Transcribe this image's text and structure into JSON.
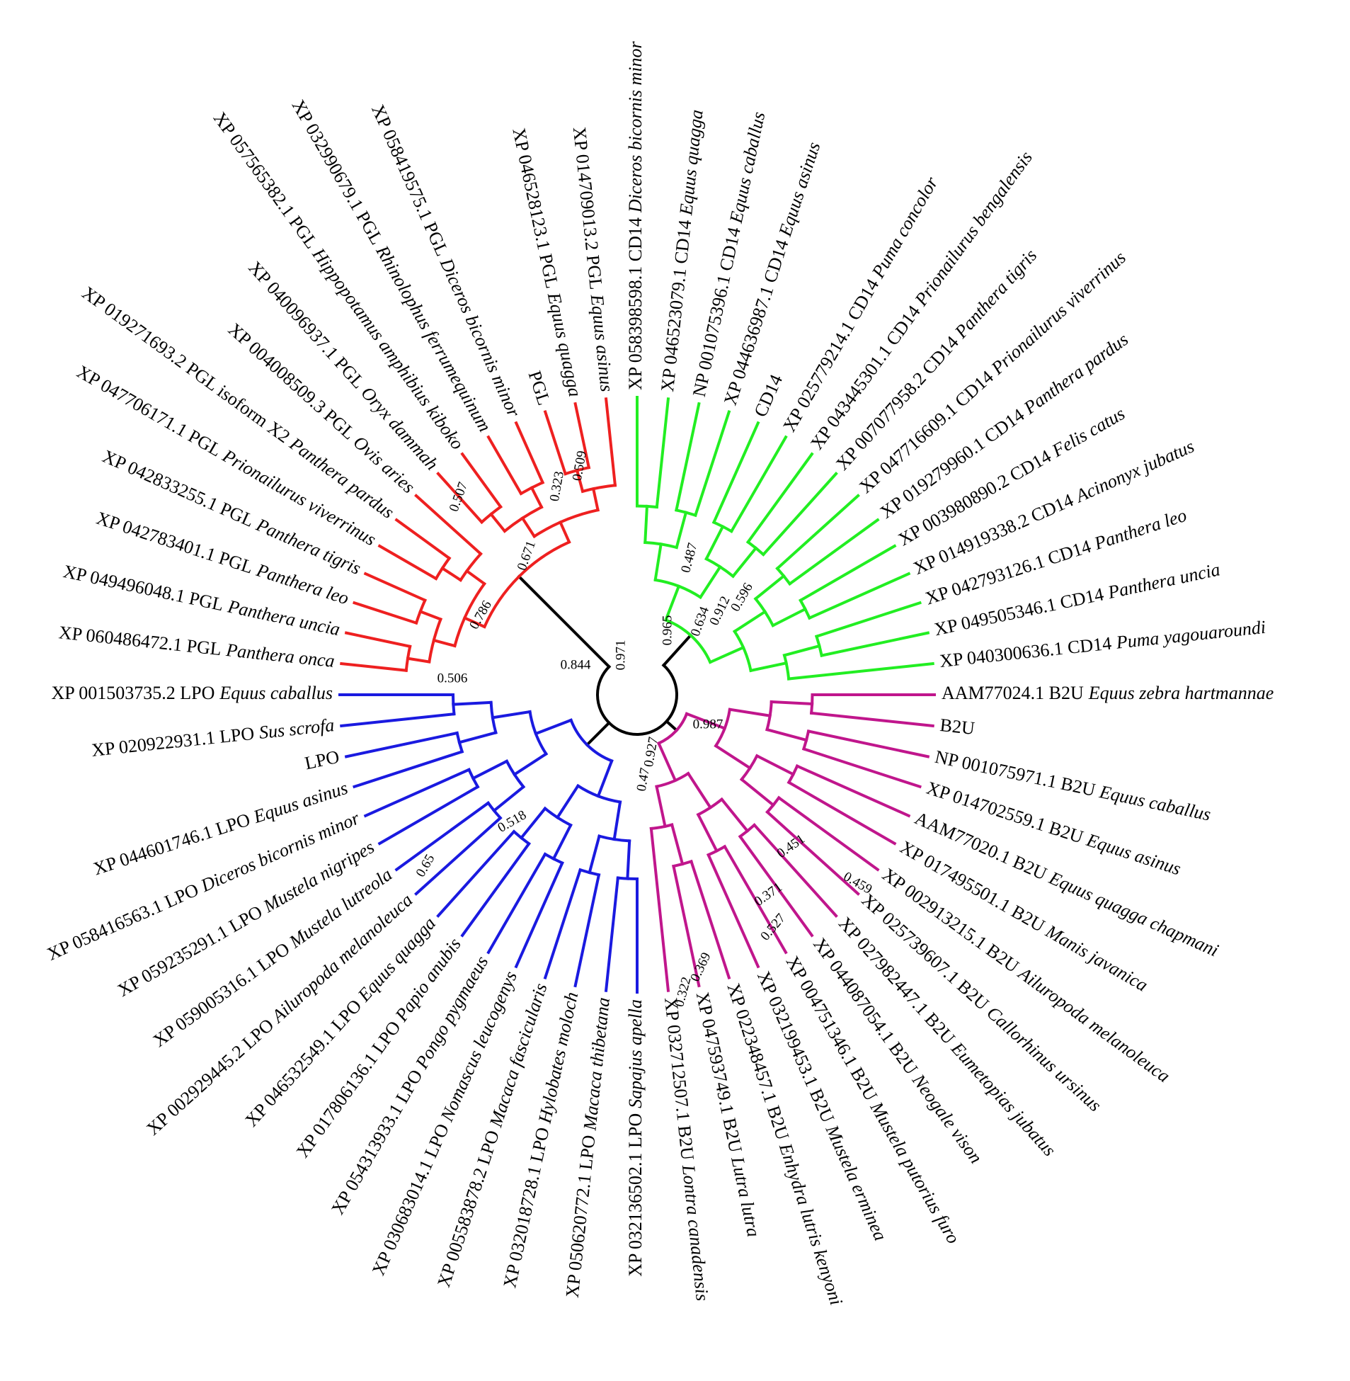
{
  "clades": [
    {
      "color": "#22ee22",
      "leaves": [
        {
          "id": "XP 058398598.1 CD14",
          "species": "Diceros bicornis minor"
        },
        {
          "id": "XP 046523079.1 CD14",
          "species": "Equus quagga"
        },
        {
          "id": "NP 001075396.1 CD14",
          "species": "Equus caballus"
        },
        {
          "id": "XP 044636987.1 CD14",
          "species": "Equus asinus"
        },
        {
          "id": "CD14"
        },
        {
          "id": "XP 025779214.1 CD14",
          "species": "Puma concolor"
        },
        {
          "id": "XP 043445301.1 CD14",
          "species": "Prionailurus bengalensis"
        },
        {
          "id": "XP 007077958.2 CD14",
          "species": "Panthera tigris"
        },
        {
          "id": "XP 047716609.1 CD14",
          "species": "Prionailurus viverrinus"
        },
        {
          "id": "XP 019279960.1 CD14",
          "species": "Panthera pardus"
        },
        {
          "id": "XP 003980890.2 CD14",
          "species": "Felis catus"
        },
        {
          "id": "XP 014919338.2 CD14",
          "species": "Acinonyx jubatus"
        },
        {
          "id": "XP 042793126.1 CD14",
          "species": "Panthera leo"
        },
        {
          "id": "XP 049505346.1 CD14",
          "species": "Panthera uncia"
        },
        {
          "id": "XP 040300636.1 CD14",
          "species": "Puma yagouaroundi"
        }
      ]
    },
    {
      "color": "#c0168c",
      "leaves": [
        {
          "id": "AAM77024.1 B2U",
          "species": "Equus zebra hartmannae"
        },
        {
          "id": "B2U"
        },
        {
          "id": "NP 001075971.1 B2U",
          "species": "Equus caballus"
        },
        {
          "id": "XP 014702559.1 B2U",
          "species": "Equus asinus"
        },
        {
          "id": "AAM77020.1 B2U",
          "species": "Equus quagga chapmani"
        },
        {
          "id": "XP 017495501.1 B2U",
          "species": "Manis javanica"
        },
        {
          "id": "XP 002913215.1 B2U",
          "species": "Ailuropoda melanoleuca"
        },
        {
          "id": "XP 025739607.1 B2U",
          "species": "Callorhinus ursinus"
        },
        {
          "id": "XP 027982447.1 B2U",
          "species": "Eumetopias jubatus"
        },
        {
          "id": "XP 044087054.1 B2U",
          "species": "Neogale vison"
        },
        {
          "id": "XP 004751346.1 B2U",
          "species": "Mustela putorius furo"
        },
        {
          "id": "XP 032199453.1 B2U",
          "species": "Mustela erminea"
        },
        {
          "id": "XP 022348457.1 B2U",
          "species": "Enhydra lutris kenyoni"
        },
        {
          "id": "XP 047593749.1 B2U",
          "species": "Lutra lutra"
        },
        {
          "id": "XP 032712507.1 B2U",
          "species": "Lontra canadensis"
        }
      ]
    },
    {
      "color": "#1a1ae0",
      "leaves": [
        {
          "id": "XP 032136502.1 LPO",
          "species": "Sapajus apella"
        },
        {
          "id": "XP 050620772.1 LPO",
          "species": "Macaca thibetana"
        },
        {
          "id": "XP 032018728.1 LPO",
          "species": "Hylobates moloch"
        },
        {
          "id": "XP 005583878.2 LPO",
          "species": "Macaca fascicularis"
        },
        {
          "id": "XP 030683014.1 LPO",
          "species": "Nomascus leucogenys"
        },
        {
          "id": "XP 054313933.1 LPO",
          "species": "Pongo pygmaeus"
        },
        {
          "id": "XP 017806136.1 LPO",
          "species": "Papio anubis"
        },
        {
          "id": "XP 046532549.1 LPO",
          "species": "Equus quagga"
        },
        {
          "id": "XP 002929445.2 LPO",
          "species": "Ailuropoda melanoleuca"
        },
        {
          "id": "XP 059005316.1 LPO",
          "species": "Mustela lutreola"
        },
        {
          "id": "XP 059235291.1 LPO",
          "species": "Mustela nigripes"
        },
        {
          "id": "XP 058416563.1 LPO",
          "species": "Diceros bicornis minor"
        },
        {
          "id": "XP 044601746.1 LPO",
          "species": "Equus asinus"
        },
        {
          "id": "LPO"
        },
        {
          "id": "XP 020922931.1 LPO",
          "species": "Sus scrofa"
        },
        {
          "id": "XP 001503735.2 LPO",
          "species": "Equus caballus"
        }
      ]
    },
    {
      "color": "#ee2020",
      "leaves": [
        {
          "id": "XP 060486472.1 PGL",
          "species": "Panthera onca"
        },
        {
          "id": "XP 049496048.1 PGL",
          "species": "Panthera uncia"
        },
        {
          "id": "XP 042783401.1 PGL",
          "species": "Panthera leo"
        },
        {
          "id": "XP 042833255.1 PGL",
          "species": "Panthera tigris"
        },
        {
          "id": "XP 047706171.1 PGL",
          "species": "Prionailurus viverrinus"
        },
        {
          "id": "XP 019271693.2 PGL isoform X2",
          "species": "Panthera pardus"
        },
        {
          "id": "XP 004008509.3 PGL",
          "species": "Ovis aries"
        },
        {
          "id": "XP 040096937.1 PGL",
          "species": "Oryx dammah"
        },
        {
          "id": "XP 057565382.1 PGL",
          "species": "Hippopotamus amphibius kiboko"
        },
        {
          "id": "XP 032990679.1 PGL",
          "species": "Rhinolophus ferrumequinum"
        },
        {
          "id": "XP 058419575.1 PGL",
          "species": "Diceros bicornis minor"
        },
        {
          "id": "PGL"
        },
        {
          "id": "XP 046528123.1 PGL",
          "species": "Equus quagga"
        },
        {
          "id": "XP 014709013.2 PGL",
          "species": "Equus asinus"
        }
      ]
    }
  ],
  "support": [
    0.844,
    0.971,
    0.506,
    0.786,
    0.671,
    0.507,
    0.323,
    0.509,
    0.965,
    0.487,
    0.634,
    0.912,
    0.596,
    0.987,
    0.451,
    0.371,
    0.459,
    0.527,
    0.369,
    0.322,
    0.65,
    0.518,
    0.47,
    0.927
  ]
}
